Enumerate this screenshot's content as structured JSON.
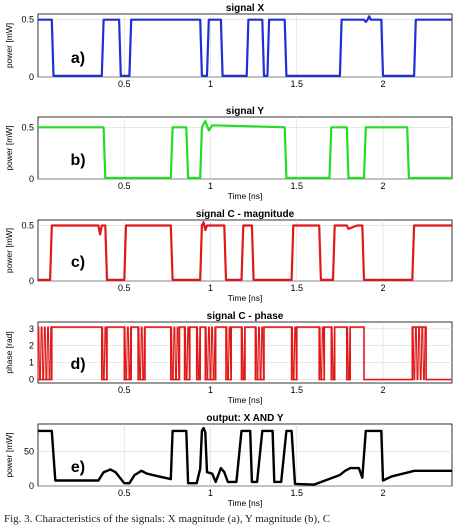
{
  "caption": "Fig. 3. Characteristics of the signals: X magnitude (a), Y magnitude (b), C",
  "chart_data": [
    {
      "type": "line",
      "title": "signal X",
      "panel_label": "a)",
      "ylabel": "power [mW]",
      "xlabel": "",
      "xlim": [
        0,
        2.4
      ],
      "ylim": [
        0,
        0.55
      ],
      "xticks": [
        {
          "v": 0.5,
          "t": "0.5"
        },
        {
          "v": 1,
          "t": "1"
        },
        {
          "v": 1.5,
          "t": "1.5"
        },
        {
          "v": 2,
          "t": "2"
        }
      ],
      "yticks": [
        {
          "v": 0,
          "t": "0"
        },
        {
          "v": 0.5,
          "t": "0.5"
        }
      ],
      "color": "#1f2fd6",
      "points": [
        [
          0,
          0.5
        ],
        [
          0.08,
          0.5
        ],
        [
          0.09,
          0.01
        ],
        [
          0.37,
          0.01
        ],
        [
          0.38,
          0.5
        ],
        [
          0.47,
          0.5
        ],
        [
          0.48,
          0.01
        ],
        [
          0.53,
          0.01
        ],
        [
          0.54,
          0.5
        ],
        [
          0.94,
          0.5
        ],
        [
          0.95,
          0.01
        ],
        [
          0.98,
          0.01
        ],
        [
          0.99,
          0.5
        ],
        [
          1.06,
          0.5
        ],
        [
          1.07,
          0.01
        ],
        [
          1.21,
          0.01
        ],
        [
          1.22,
          0.5
        ],
        [
          1.3,
          0.5
        ],
        [
          1.31,
          0.01
        ],
        [
          1.33,
          0.01
        ],
        [
          1.34,
          0.5
        ],
        [
          1.43,
          0.5
        ],
        [
          1.44,
          0.01
        ],
        [
          1.75,
          0.01
        ],
        [
          1.76,
          0.5
        ],
        [
          1.89,
          0.5
        ],
        [
          1.9,
          0.48
        ],
        [
          1.91,
          0.5
        ],
        [
          1.92,
          0.53
        ],
        [
          1.93,
          0.5
        ],
        [
          1.99,
          0.5
        ],
        [
          2.0,
          0.01
        ],
        [
          2.18,
          0.01
        ],
        [
          2.19,
          0.5
        ],
        [
          2.4,
          0.5
        ]
      ]
    },
    {
      "type": "line",
      "title": "signal Y",
      "panel_label": "b)",
      "ylabel": "power [mW]",
      "xlabel": "Time [ns]",
      "xlim": [
        0,
        2.4
      ],
      "ylim": [
        0,
        0.6
      ],
      "xticks": [
        {
          "v": 0.5,
          "t": "0.5"
        },
        {
          "v": 1,
          "t": "1"
        },
        {
          "v": 1.5,
          "t": "1.5"
        },
        {
          "v": 2,
          "t": "2"
        }
      ],
      "yticks": [
        {
          "v": 0,
          "t": "0"
        },
        {
          "v": 0.5,
          "t": "0.5"
        }
      ],
      "color": "#22dd22",
      "points": [
        [
          0,
          0.5
        ],
        [
          0.38,
          0.5
        ],
        [
          0.39,
          0.01
        ],
        [
          0.77,
          0.01
        ],
        [
          0.78,
          0.5
        ],
        [
          0.86,
          0.5
        ],
        [
          0.87,
          0.01
        ],
        [
          0.94,
          0.01
        ],
        [
          0.95,
          0.5
        ],
        [
          0.97,
          0.56
        ],
        [
          0.99,
          0.47
        ],
        [
          1.01,
          0.52
        ],
        [
          1.43,
          0.5
        ],
        [
          1.44,
          0.01
        ],
        [
          1.69,
          0.01
        ],
        [
          1.7,
          0.5
        ],
        [
          1.79,
          0.5
        ],
        [
          1.8,
          0.01
        ],
        [
          1.89,
          0.01
        ],
        [
          1.9,
          0.5
        ],
        [
          2.14,
          0.5
        ],
        [
          2.15,
          0.01
        ],
        [
          2.4,
          0.01
        ]
      ]
    },
    {
      "type": "line",
      "title": "signal C - magnitude",
      "panel_label": "c)",
      "ylabel": "power [mW]",
      "xlabel": "Time [ns]",
      "xlim": [
        0,
        2.4
      ],
      "ylim": [
        0,
        0.55
      ],
      "xticks": [
        {
          "v": 0.5,
          "t": "0.5"
        },
        {
          "v": 1,
          "t": "1"
        },
        {
          "v": 1.5,
          "t": "1.5"
        },
        {
          "v": 2,
          "t": "2"
        }
      ],
      "yticks": [
        {
          "v": 0,
          "t": "0"
        },
        {
          "v": 0.5,
          "t": "0.5"
        }
      ],
      "color": "#e01818",
      "points": [
        [
          0,
          0.01
        ],
        [
          0.07,
          0.01
        ],
        [
          0.08,
          0.5
        ],
        [
          0.35,
          0.5
        ],
        [
          0.36,
          0.42
        ],
        [
          0.37,
          0.5
        ],
        [
          0.39,
          0.5
        ],
        [
          0.4,
          0.01
        ],
        [
          0.5,
          0.01
        ],
        [
          0.51,
          0.5
        ],
        [
          0.77,
          0.5
        ],
        [
          0.78,
          0.01
        ],
        [
          0.94,
          0.01
        ],
        [
          0.95,
          0.5
        ],
        [
          0.96,
          0.53
        ],
        [
          0.97,
          0.46
        ],
        [
          0.98,
          0.5
        ],
        [
          1.08,
          0.5
        ],
        [
          1.09,
          0.01
        ],
        [
          1.18,
          0.01
        ],
        [
          1.19,
          0.5
        ],
        [
          1.24,
          0.5
        ],
        [
          1.25,
          0.01
        ],
        [
          1.47,
          0.01
        ],
        [
          1.48,
          0.5
        ],
        [
          1.63,
          0.5
        ],
        [
          1.64,
          0.01
        ],
        [
          1.71,
          0.01
        ],
        [
          1.72,
          0.5
        ],
        [
          1.79,
          0.5
        ],
        [
          1.8,
          0.47
        ],
        [
          1.85,
          0.5
        ],
        [
          1.88,
          0.5
        ],
        [
          1.89,
          0.01
        ],
        [
          2.17,
          0.01
        ],
        [
          2.18,
          0.5
        ],
        [
          2.4,
          0.5
        ]
      ]
    },
    {
      "type": "line",
      "title": "signal C - phase",
      "panel_label": "d)",
      "ylabel": "phase [rad]",
      "xlabel": "Time [ns]",
      "xlim": [
        0,
        2.4
      ],
      "ylim": [
        -0.2,
        3.4
      ],
      "xticks": [
        {
          "v": 0.5,
          "t": "0.5"
        },
        {
          "v": 1,
          "t": "1"
        },
        {
          "v": 1.5,
          "t": "1.5"
        },
        {
          "v": 2,
          "t": "2"
        }
      ],
      "yticks": [
        {
          "v": 0,
          "t": "0"
        },
        {
          "v": 1,
          "t": "1"
        },
        {
          "v": 2,
          "t": "2"
        },
        {
          "v": 3,
          "t": "3"
        }
      ],
      "color": "#e01818",
      "steps": [
        [
          0,
          0
        ],
        [
          0.08,
          3.1
        ],
        [
          0.37,
          0
        ],
        [
          0.4,
          3.1
        ],
        [
          0.5,
          0
        ],
        [
          0.54,
          3.1
        ],
        [
          0.58,
          0
        ],
        [
          0.62,
          3.1
        ],
        [
          0.77,
          0
        ],
        [
          0.82,
          3.1
        ],
        [
          0.85,
          0
        ],
        [
          0.88,
          3.1
        ],
        [
          0.92,
          0
        ],
        [
          0.94,
          3.1
        ],
        [
          0.97,
          0
        ],
        [
          1.03,
          3.1
        ],
        [
          1.09,
          0
        ],
        [
          1.12,
          3.1
        ],
        [
          1.18,
          0
        ],
        [
          1.2,
          3.1
        ],
        [
          1.26,
          0
        ],
        [
          1.31,
          3.1
        ],
        [
          1.47,
          0
        ],
        [
          1.5,
          3.1
        ],
        [
          1.63,
          0
        ],
        [
          1.66,
          3.1
        ],
        [
          1.7,
          0
        ],
        [
          1.72,
          3.1
        ],
        [
          1.79,
          0
        ],
        [
          1.81,
          3.1
        ],
        [
          1.89,
          0
        ],
        [
          2.17,
          3.1
        ],
        [
          2.25,
          0
        ],
        [
          2.4,
          0
        ]
      ],
      "noise": [
        [
          0,
          0.08
        ],
        [
          0.37,
          0.4
        ],
        [
          0.5,
          0.54
        ],
        [
          0.58,
          0.62
        ],
        [
          0.77,
          0.82
        ],
        [
          0.85,
          0.88
        ],
        [
          0.92,
          0.94
        ],
        [
          0.97,
          1.03
        ],
        [
          1.09,
          1.12
        ],
        [
          1.18,
          1.2
        ],
        [
          1.26,
          1.31
        ],
        [
          1.47,
          1.5
        ],
        [
          1.63,
          1.66
        ],
        [
          1.7,
          1.72
        ],
        [
          1.79,
          1.81
        ],
        [
          2.17,
          2.25
        ]
      ]
    },
    {
      "type": "line",
      "title": "output: X AND Y",
      "panel_label": "e)",
      "ylabel": "power [mW]",
      "xlabel": "Time [ns]",
      "xlim": [
        0,
        2.4
      ],
      "ylim": [
        0,
        90
      ],
      "xticks": [
        {
          "v": 0.5,
          "t": "0.5"
        },
        {
          "v": 1,
          "t": "1"
        },
        {
          "v": 1.5,
          "t": "1.5"
        },
        {
          "v": 2,
          "t": "2"
        }
      ],
      "yticks": [
        {
          "v": 0,
          "t": "0"
        },
        {
          "v": 50,
          "t": "50"
        }
      ],
      "color": "#000000",
      "points": [
        [
          0,
          80
        ],
        [
          0.08,
          80
        ],
        [
          0.1,
          8
        ],
        [
          0.35,
          8
        ],
        [
          0.38,
          20
        ],
        [
          0.42,
          24
        ],
        [
          0.45,
          20
        ],
        [
          0.5,
          4
        ],
        [
          0.53,
          4
        ],
        [
          0.56,
          16
        ],
        [
          0.6,
          22
        ],
        [
          0.63,
          18
        ],
        [
          0.7,
          14
        ],
        [
          0.77,
          10
        ],
        [
          0.78,
          80
        ],
        [
          0.86,
          80
        ],
        [
          0.87,
          4
        ],
        [
          0.92,
          4
        ],
        [
          0.94,
          25
        ],
        [
          0.95,
          80
        ],
        [
          0.96,
          84
        ],
        [
          0.97,
          78
        ],
        [
          0.98,
          20
        ],
        [
          1.01,
          18
        ],
        [
          1.03,
          6
        ],
        [
          1.06,
          26
        ],
        [
          1.08,
          20
        ],
        [
          1.1,
          6
        ],
        [
          1.15,
          6
        ],
        [
          1.18,
          80
        ],
        [
          1.23,
          80
        ],
        [
          1.24,
          6
        ],
        [
          1.27,
          6
        ],
        [
          1.3,
          80
        ],
        [
          1.36,
          80
        ],
        [
          1.37,
          6
        ],
        [
          1.41,
          6
        ],
        [
          1.44,
          80
        ],
        [
          1.47,
          80
        ],
        [
          1.49,
          3
        ],
        [
          1.6,
          2
        ],
        [
          1.75,
          16
        ],
        [
          1.78,
          22
        ],
        [
          1.81,
          26
        ],
        [
          1.86,
          26
        ],
        [
          1.88,
          12
        ],
        [
          1.9,
          80
        ],
        [
          1.99,
          80
        ],
        [
          2.0,
          8
        ],
        [
          2.05,
          14
        ],
        [
          2.15,
          20
        ],
        [
          2.18,
          22
        ],
        [
          2.4,
          22
        ]
      ]
    }
  ]
}
